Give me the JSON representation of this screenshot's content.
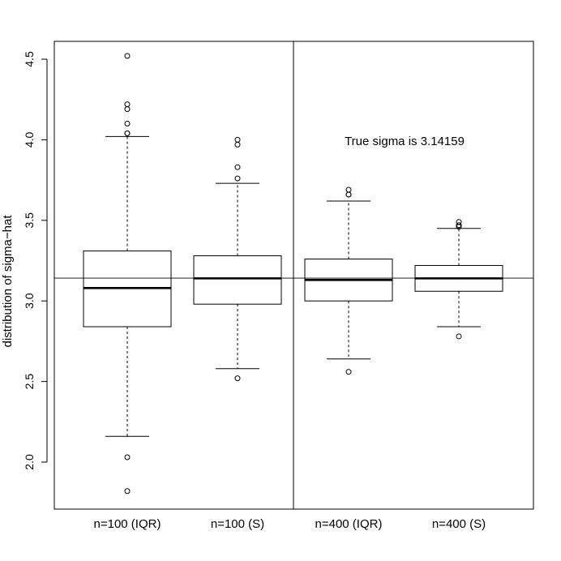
{
  "chart_data": {
    "type": "box",
    "title": "",
    "xlabel": "",
    "ylabel": "distribution of sigma−hat",
    "ylim": [
      1.8,
      4.62
    ],
    "yticks": [
      2.0,
      2.5,
      3.0,
      3.5,
      4.0,
      4.5
    ],
    "ytick_labels": [
      "2.0",
      "2.5",
      "3.0",
      "3.5",
      "4.0",
      "4.5"
    ],
    "categories": [
      "n=100 (IQR)",
      "n=100 (S)",
      "n=400 (IQR)",
      "n=400 (S)"
    ],
    "boxes": [
      {
        "name": "n=100 (IQR)",
        "whisker_low": 2.16,
        "q1": 2.84,
        "median": 3.08,
        "q3": 3.31,
        "whisker_high": 4.02,
        "outliers": [
          4.52,
          4.22,
          4.19,
          4.1,
          4.04,
          4.04,
          2.03,
          1.82
        ]
      },
      {
        "name": "n=100 (S)",
        "whisker_low": 2.58,
        "q1": 2.98,
        "median": 3.14,
        "q3": 3.28,
        "whisker_high": 3.73,
        "outliers": [
          4.0,
          3.97,
          3.83,
          3.76,
          2.52
        ]
      },
      {
        "name": "n=400 (IQR)",
        "whisker_low": 2.64,
        "q1": 3.0,
        "median": 3.13,
        "q3": 3.26,
        "whisker_high": 3.62,
        "outliers": [
          3.69,
          3.66,
          3.66,
          2.56
        ]
      },
      {
        "name": "n=400 (S)",
        "whisker_low": 2.84,
        "q1": 3.06,
        "median": 3.14,
        "q3": 3.22,
        "whisker_high": 3.45,
        "outliers": [
          3.49,
          3.47,
          3.46,
          2.78
        ]
      }
    ],
    "reference_line": 3.14159,
    "annotation": "True sigma is 3.14159",
    "grid": false,
    "divider_between": [
      "n=100 (S)",
      "n=400 (IQR)"
    ]
  }
}
